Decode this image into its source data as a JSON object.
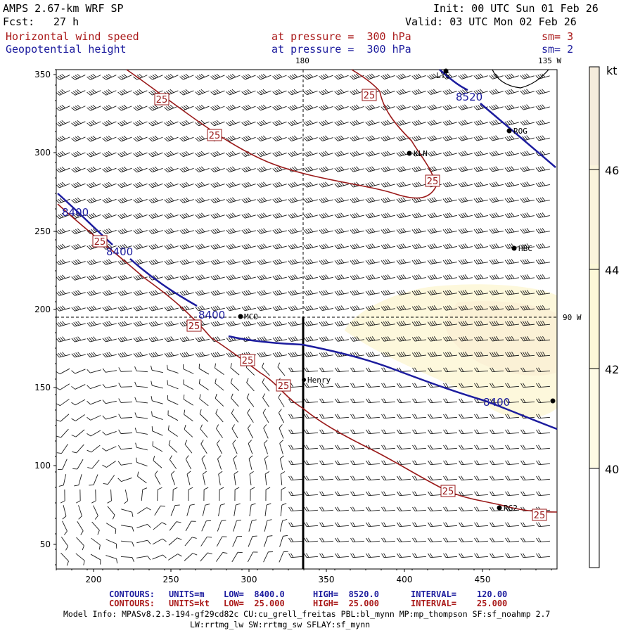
{
  "header": {
    "model": "AMPS 2.67-km WRF SP",
    "init": "Init: 00 UTC Sun 01 Feb 26",
    "fcst_label": "Fcst:",
    "fcst_value": "27 h",
    "valid": "Valid: 03 UTC Mon 02 Feb 26",
    "field1": "Horizontal wind speed",
    "field1_level": "at pressure =  300 hPa",
    "field1_sm": "sm= 3",
    "field2": "Geopotential height",
    "field2_level": "at pressure =  300 hPa",
    "field2_sm": "sm= 2"
  },
  "map": {
    "meridian_180": "180",
    "meridian_135w": "135 W",
    "meridian_90w": "90 W",
    "x_ticks": [
      "200",
      "250",
      "300",
      "350",
      "400",
      "450"
    ],
    "y_ticks": [
      "350",
      "300",
      "250",
      "200",
      "150",
      "100",
      "50"
    ],
    "stations": [
      "LYS",
      "ROG",
      "KLN",
      "HBC",
      "MCO",
      "Henry",
      "RG2"
    ],
    "height_labels": [
      "8520",
      "8400",
      "8400",
      "8400",
      "8400"
    ],
    "speed_labels": [
      "25",
      "25",
      "25",
      "25",
      "25",
      "25",
      "25",
      "25",
      "25"
    ]
  },
  "colorbar": {
    "unit": "kt",
    "labels": [
      "46",
      "44",
      "42",
      "40"
    ],
    "colors": [
      "#f5ecdc",
      "#fbf4dc",
      "#fdf8d8",
      "#fefbe4",
      "#ffffff"
    ]
  },
  "footer": {
    "c1_title": "CONTOURS:",
    "c1_units": "UNITS=m",
    "c1_low": "LOW=  8400.0",
    "c1_high": "HIGH=  8520.0",
    "c1_interval": "INTERVAL=    120.00",
    "c2_title": "CONTOURS:",
    "c2_units": "UNITS=kt",
    "c2_low": "LOW=  25.000",
    "c2_high": "HIGH=  25.000",
    "c2_interval": "INTERVAL=    25.000",
    "model_info": "Model Info: MPASv8.2.3-194-gf29cd82c CU:cu_grell_freitas PBL:bl_mynn MP:mp_thompson SF:sf_noahmp 2.7",
    "model_info2": "LW:rrtmg_lw SW:rrtmg_sw SFLAY:sf_mynn"
  },
  "colors": {
    "height": "#1c1c9e",
    "speed": "#9a1a1a",
    "barb": "#1a1a1a"
  }
}
